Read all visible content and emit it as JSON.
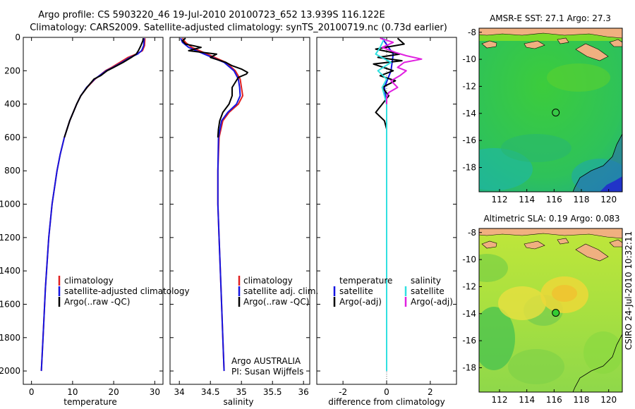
{
  "title": {
    "line1": "Argo profile: CS 5903220_46 19-Jul-2010 20100723_652 13.939S 116.122E",
    "line2": "Climatology: CARS2009. Satellite-adjusted climatology: synTS_20100719.nc (0.73d earlier)"
  },
  "side_label": "CSIRO 24-Jul-2010 10:32:11",
  "colors": {
    "climatology": "#e02020",
    "satellite": "#1515e0",
    "argo": "#000000",
    "satellite_diff": "#30e0e0",
    "argo_salinity_diff": "#e020e0",
    "land": "#f0b080",
    "map_green": "#33cc33"
  },
  "chart_data": [
    {
      "type": "line",
      "name": "temperature-profile",
      "xlabel": "temperature",
      "ylabel": "",
      "xlim": [
        -2,
        32
      ],
      "ylim": [
        2080,
        0
      ],
      "xticks": [
        0,
        10,
        20,
        30
      ],
      "yticks": [
        0,
        200,
        400,
        600,
        800,
        1000,
        1200,
        1400,
        1600,
        1800,
        2000
      ],
      "legend": [
        "climatology",
        "satellite-adjusted climatology",
        "Argo(..raw -QC)"
      ],
      "series": [
        {
          "name": "climatology",
          "color": "#e02020",
          "depth": [
            5,
            50,
            80,
            100,
            120,
            150,
            180,
            200,
            250,
            300,
            350,
            400,
            500,
            600,
            700,
            800,
            1000,
            1200,
            1500,
            1800,
            2000
          ],
          "values": [
            27.6,
            27.5,
            27.0,
            25.5,
            23.5,
            21.5,
            19.5,
            18.0,
            15.5,
            13.5,
            12.0,
            11.0,
            9.3,
            8.0,
            7.0,
            6.2,
            5.0,
            4.2,
            3.4,
            2.8,
            2.4
          ]
        },
        {
          "name": "satellite-adjusted climatology",
          "color": "#1515e0",
          "depth": [
            5,
            50,
            80,
            100,
            120,
            150,
            180,
            200,
            250,
            300,
            350,
            400,
            500,
            600,
            700,
            800,
            1000,
            1200,
            1500,
            1800,
            2000
          ],
          "values": [
            27.4,
            27.3,
            26.8,
            25.8,
            24.0,
            22.0,
            19.8,
            18.2,
            15.4,
            13.4,
            12.0,
            11.0,
            9.3,
            8.0,
            7.0,
            6.2,
            5.0,
            4.2,
            3.4,
            2.8,
            2.4
          ]
        },
        {
          "name": "Argo(..raw -QC)",
          "color": "#000000",
          "depth": [
            5,
            20,
            50,
            80,
            100,
            120,
            150,
            180,
            200,
            230,
            250,
            300,
            350,
            400,
            500,
            600
          ],
          "values": [
            27.2,
            27.1,
            26.6,
            26.0,
            25.5,
            24.3,
            22.3,
            20.0,
            18.4,
            16.8,
            15.2,
            13.5,
            12.0,
            11.0,
            9.3,
            8.0
          ]
        }
      ]
    },
    {
      "type": "line",
      "name": "salinity-profile",
      "xlabel": "salinity",
      "xlim": [
        33.85,
        36.1
      ],
      "ylim": [
        2080,
        0
      ],
      "xticks": [
        34,
        34.5,
        35,
        35.5,
        36
      ],
      "legend": [
        "climatology",
        "satellite adj. clim.",
        "Argo(..raw -QC)"
      ],
      "annotation": [
        "Argo AUSTRALIA",
        "PI: Susan Wijffels"
      ],
      "series": [
        {
          "name": "climatology",
          "color": "#e02020",
          "depth": [
            5,
            30,
            60,
            100,
            150,
            200,
            250,
            300,
            350,
            400,
            450,
            500,
            600,
            800,
            1000,
            1200,
            1500,
            1800,
            2000
          ],
          "values": [
            34.05,
            34.1,
            34.2,
            34.45,
            34.75,
            34.9,
            34.98,
            35.0,
            35.02,
            34.95,
            34.8,
            34.7,
            34.64,
            34.62,
            34.62,
            34.64,
            34.67,
            34.7,
            34.72
          ]
        },
        {
          "name": "satellite adj. clim.",
          "color": "#1515e0",
          "depth": [
            5,
            30,
            60,
            100,
            150,
            200,
            250,
            300,
            350,
            400,
            450,
            500,
            600,
            800,
            1000,
            1200,
            1500,
            1800,
            2000
          ],
          "values": [
            34.02,
            34.05,
            34.15,
            34.4,
            34.72,
            34.88,
            34.95,
            34.97,
            34.98,
            34.92,
            34.78,
            34.68,
            34.63,
            34.62,
            34.62,
            34.64,
            34.67,
            34.7,
            34.72
          ]
        },
        {
          "name": "Argo(..raw -QC)",
          "color": "#000000",
          "depth": [
            5,
            20,
            40,
            60,
            80,
            100,
            120,
            150,
            170,
            190,
            210,
            220,
            240,
            270,
            300,
            350,
            400,
            450,
            500,
            550,
            600
          ],
          "values": [
            34.1,
            34.05,
            34.1,
            34.35,
            34.15,
            34.6,
            34.5,
            34.75,
            34.85,
            35.0,
            35.1,
            35.08,
            34.95,
            34.9,
            34.85,
            34.85,
            34.8,
            34.7,
            34.65,
            34.63,
            34.62
          ]
        }
      ]
    },
    {
      "type": "line",
      "name": "difference-profile",
      "xlabel": "difference from climatology",
      "xlim": [
        -3.2,
        3.2
      ],
      "ylim": [
        2080,
        0
      ],
      "xticks": [
        -2,
        0,
        2
      ],
      "legend_headers": [
        "temperature",
        "salinity"
      ],
      "legend": [
        "satellite",
        "Argo(-adj)",
        "satellite",
        "Argo(-adj)"
      ],
      "series": [
        {
          "name": "temperature satellite",
          "color": "#1515e0",
          "depth": [
            5,
            100,
            200,
            300,
            400,
            500,
            600,
            800,
            1000,
            1200,
            1500,
            1800,
            2000
          ],
          "values": [
            -0.2,
            0.3,
            0.2,
            -0.1,
            0.0,
            0.0,
            0.0,
            0.0,
            0.0,
            0.0,
            0.0,
            0.0,
            0.0
          ]
        },
        {
          "name": "temperature Argo(-adj)",
          "color": "#000000",
          "depth": [
            5,
            40,
            70,
            100,
            120,
            140,
            160,
            200,
            230,
            260,
            300,
            350,
            400,
            450,
            500,
            550,
            600
          ],
          "values": [
            0.5,
            0.8,
            -0.5,
            0.6,
            -0.4,
            0.7,
            -0.6,
            0.3,
            -0.3,
            0.4,
            -0.2,
            0.1,
            -0.2,
            -0.5,
            -0.1,
            0.0,
            0.0
          ]
        },
        {
          "name": "salinity satellite",
          "color": "#30e0e0",
          "depth": [
            5,
            60,
            100,
            150,
            200,
            250,
            300,
            400,
            500,
            600,
            800,
            1000,
            1200,
            1500,
            1800,
            2000
          ],
          "values": [
            -0.1,
            -0.3,
            -0.5,
            0.2,
            -0.4,
            0.0,
            -0.2,
            0.0,
            0.0,
            0.0,
            0.0,
            0.0,
            0.0,
            0.0,
            0.0,
            0.0
          ]
        },
        {
          "name": "salinity Argo(-adj)",
          "color": "#e020e0",
          "depth": [
            5,
            30,
            60,
            90,
            110,
            130,
            150,
            180,
            200,
            230,
            260,
            300,
            330,
            360,
            400
          ],
          "values": [
            -0.3,
            0.3,
            -0.2,
            0.4,
            0.9,
            1.6,
            0.8,
            0.5,
            0.9,
            0.6,
            0.2,
            0.5,
            0.1,
            0.0,
            0.0
          ]
        }
      ]
    },
    {
      "type": "heatmap",
      "name": "amsr-e-sst-map",
      "title": "AMSR-E SST: 27.1  Argo: 27.3",
      "xlim": [
        110.5,
        121
      ],
      "ylim": [
        -19.8,
        -7.7
      ],
      "xticks": [
        112,
        114,
        116,
        118,
        120
      ],
      "yticks": [
        -8,
        -10,
        -12,
        -14,
        -16,
        -18
      ],
      "argo_location": [
        116.122,
        -13.939
      ]
    },
    {
      "type": "heatmap",
      "name": "altimetric-sla-map",
      "title": "Altimetric SLA: 0.19  Argo: 0.083",
      "xlim": [
        110.5,
        121
      ],
      "ylim": [
        -19.8,
        -7.7
      ],
      "xticks": [
        112,
        114,
        116,
        118,
        120
      ],
      "yticks": [
        -8,
        -10,
        -12,
        -14,
        -16,
        -18
      ],
      "argo_location": [
        116.122,
        -13.939
      ]
    }
  ]
}
